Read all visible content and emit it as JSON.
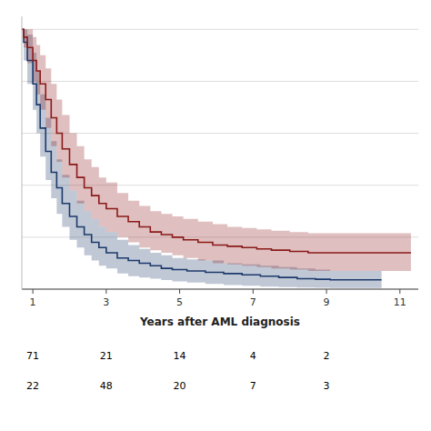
{
  "chart_data": {
    "type": "step",
    "x_label": "Years after AML diagnosis",
    "xlim": [
      0.7,
      11.5
    ],
    "xticks": [
      1,
      3,
      5,
      7,
      9,
      11
    ],
    "ylim": [
      0.0,
      1.05
    ],
    "yticks": [
      0.0,
      0.2,
      0.4,
      0.6,
      0.8,
      1.0
    ],
    "tick_labels": "x",
    "grid": true,
    "series": [
      {
        "color": "#8B1A1A",
        "x": [
          0.7,
          0.75,
          0.85,
          1.0,
          1.1,
          1.2,
          1.35,
          1.5,
          1.65,
          1.8,
          2.0,
          2.2,
          2.4,
          2.6,
          2.8,
          3.0,
          3.3,
          3.6,
          3.9,
          4.2,
          4.5,
          4.8,
          5.1,
          5.5,
          5.9,
          6.3,
          6.7,
          7.1,
          7.5,
          8.0,
          8.5,
          9.0,
          9.5,
          11.3
        ],
        "values": [
          1.0,
          0.97,
          0.93,
          0.88,
          0.84,
          0.79,
          0.73,
          0.66,
          0.6,
          0.54,
          0.48,
          0.43,
          0.39,
          0.36,
          0.33,
          0.31,
          0.28,
          0.26,
          0.24,
          0.22,
          0.21,
          0.2,
          0.19,
          0.18,
          0.17,
          0.165,
          0.16,
          0.155,
          0.15,
          0.145,
          0.14,
          0.14,
          0.14,
          0.14
        ],
        "ci_lo": [
          1.0,
          0.93,
          0.87,
          0.8,
          0.75,
          0.69,
          0.62,
          0.55,
          0.49,
          0.43,
          0.38,
          0.33,
          0.3,
          0.27,
          0.24,
          0.22,
          0.2,
          0.18,
          0.16,
          0.15,
          0.14,
          0.13,
          0.12,
          0.11,
          0.1,
          0.095,
          0.09,
          0.085,
          0.08,
          0.075,
          0.07,
          0.07,
          0.07,
          0.07
        ],
        "ci_hi": [
          1.0,
          1.0,
          1.0,
          0.97,
          0.94,
          0.9,
          0.85,
          0.79,
          0.73,
          0.67,
          0.6,
          0.55,
          0.5,
          0.47,
          0.43,
          0.41,
          0.37,
          0.34,
          0.32,
          0.3,
          0.29,
          0.28,
          0.27,
          0.26,
          0.25,
          0.24,
          0.235,
          0.23,
          0.225,
          0.22,
          0.215,
          0.215,
          0.215,
          0.215
        ]
      },
      {
        "color": "#1C3A6B",
        "x": [
          0.7,
          0.75,
          0.85,
          1.0,
          1.1,
          1.2,
          1.35,
          1.5,
          1.65,
          1.8,
          2.0,
          2.2,
          2.4,
          2.6,
          2.8,
          3.0,
          3.3,
          3.6,
          3.9,
          4.2,
          4.5,
          4.8,
          5.2,
          5.7,
          6.2,
          6.7,
          7.2,
          7.7,
          8.2,
          8.7,
          9.1,
          9.3,
          10.5
        ],
        "values": [
          1.0,
          0.95,
          0.88,
          0.79,
          0.71,
          0.62,
          0.53,
          0.45,
          0.39,
          0.33,
          0.28,
          0.24,
          0.21,
          0.18,
          0.16,
          0.14,
          0.12,
          0.11,
          0.1,
          0.09,
          0.08,
          0.075,
          0.07,
          0.065,
          0.06,
          0.055,
          0.05,
          0.045,
          0.04,
          0.038,
          0.036,
          0.036,
          0.036
        ],
        "ci_lo": [
          1.0,
          0.88,
          0.79,
          0.69,
          0.6,
          0.51,
          0.42,
          0.35,
          0.29,
          0.24,
          0.19,
          0.16,
          0.13,
          0.11,
          0.09,
          0.08,
          0.06,
          0.05,
          0.045,
          0.04,
          0.035,
          0.03,
          0.025,
          0.02,
          0.016,
          0.013,
          0.01,
          0.008,
          0.006,
          0.005,
          0.004,
          0.004,
          0.004
        ],
        "ci_hi": [
          1.0,
          1.0,
          0.98,
          0.91,
          0.84,
          0.75,
          0.66,
          0.57,
          0.5,
          0.44,
          0.38,
          0.34,
          0.3,
          0.27,
          0.24,
          0.22,
          0.19,
          0.17,
          0.155,
          0.14,
          0.13,
          0.12,
          0.115,
          0.11,
          0.1,
          0.095,
          0.09,
          0.085,
          0.08,
          0.075,
          0.07,
          0.07,
          0.07
        ]
      }
    ],
    "risk_table": {
      "x": [
        1,
        3,
        5,
        7,
        9
      ],
      "rows": [
        [
          71,
          21,
          14,
          4,
          2
        ],
        [
          22,
          48,
          20,
          7,
          3
        ]
      ]
    }
  }
}
